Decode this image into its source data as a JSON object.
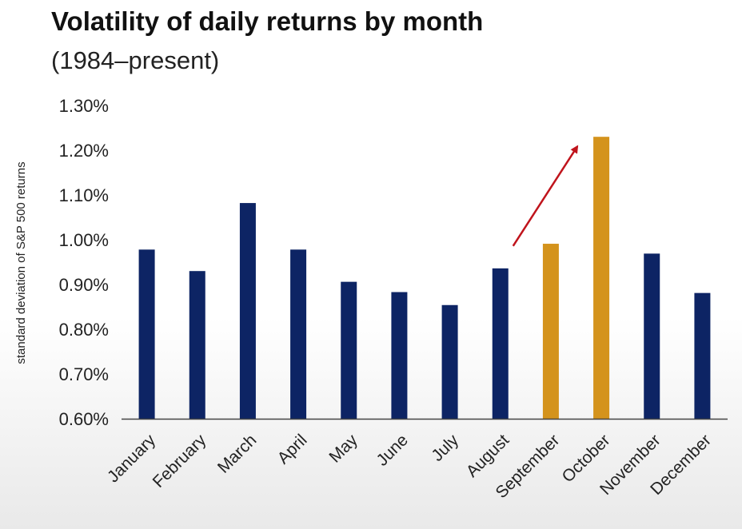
{
  "chart_data": {
    "type": "bar",
    "title": "Volatility of daily returns by month",
    "subtitle": "(1984–present)",
    "ylabel": "standard deviation of S&P 500 returns",
    "xlabel": "",
    "categories": [
      "January",
      "February",
      "March",
      "April",
      "May",
      "June",
      "July",
      "August",
      "September",
      "October",
      "November",
      "December"
    ],
    "values": [
      0.978,
      0.93,
      1.082,
      0.978,
      0.906,
      0.883,
      0.854,
      0.936,
      0.991,
      1.23,
      0.969,
      0.881
    ],
    "highlight": [
      "September",
      "October"
    ],
    "ylim": [
      0.6,
      1.3
    ],
    "yticks": [
      0.6,
      0.7,
      0.8,
      0.9,
      1.0,
      1.1,
      1.2,
      1.3
    ],
    "ytick_labels": [
      "0.60%",
      "0.70%",
      "0.80%",
      "0.90%",
      "1.00%",
      "1.10%",
      "1.20%",
      "1.30%"
    ],
    "grid": false,
    "annotation": "red-arrow-from-august-to-october",
    "colors": {
      "bar": "#0d2464",
      "highlight_bar": "#d4931c",
      "arrow": "#c0141c",
      "axis": "#444444"
    }
  }
}
